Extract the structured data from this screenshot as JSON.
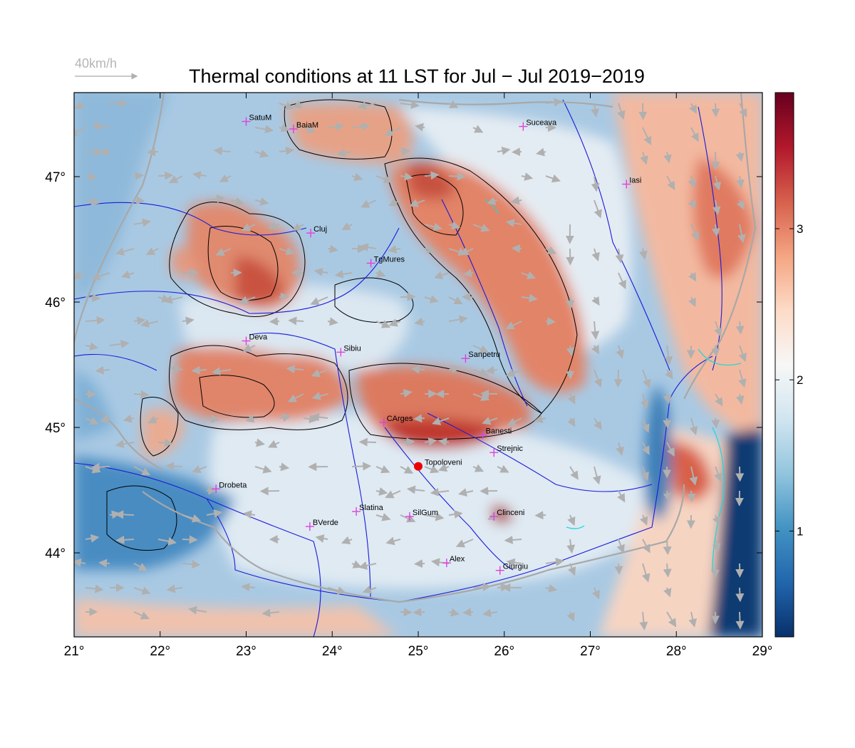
{
  "title": "Thermal conditions at 11 LST for Jul − Jul  2019−2019",
  "wind_legend": {
    "label": "40km/h"
  },
  "map": {
    "lon_range": [
      21,
      29
    ],
    "lat_range": [
      43.33,
      47.67
    ],
    "x_ticks": [
      {
        "value": 21,
        "label": "21°"
      },
      {
        "value": 22,
        "label": "22°"
      },
      {
        "value": 23,
        "label": "23°"
      },
      {
        "value": 24,
        "label": "24°"
      },
      {
        "value": 25,
        "label": "25°"
      },
      {
        "value": 26,
        "label": "26°"
      },
      {
        "value": 27,
        "label": "27°"
      },
      {
        "value": 28,
        "label": "28°"
      },
      {
        "value": 29,
        "label": "29°"
      }
    ],
    "y_ticks": [
      {
        "value": 44,
        "label": "44°"
      },
      {
        "value": 45,
        "label": "45°"
      },
      {
        "value": 46,
        "label": "46°"
      },
      {
        "value": 47,
        "label": "47°"
      }
    ],
    "cities": [
      {
        "name": "SatuM",
        "lon": 23.0,
        "lat": 47.44
      },
      {
        "name": "BaiaM",
        "lon": 23.55,
        "lat": 47.38
      },
      {
        "name": "Suceava",
        "lon": 26.22,
        "lat": 47.4
      },
      {
        "name": "Iasi",
        "lon": 27.42,
        "lat": 46.94
      },
      {
        "name": "Cluj",
        "lon": 23.75,
        "lat": 46.55
      },
      {
        "name": "TgMures",
        "lon": 24.45,
        "lat": 46.31
      },
      {
        "name": "Deva",
        "lon": 23.0,
        "lat": 45.69
      },
      {
        "name": "Sibiu",
        "lon": 24.1,
        "lat": 45.6
      },
      {
        "name": "Sanpetru",
        "lon": 25.55,
        "lat": 45.55
      },
      {
        "name": "CArges",
        "lon": 24.6,
        "lat": 45.04
      },
      {
        "name": "Banesti",
        "lon": 25.75,
        "lat": 44.94
      },
      {
        "name": "Strejnic",
        "lon": 25.88,
        "lat": 44.8
      },
      {
        "name": "Drobeta",
        "lon": 22.65,
        "lat": 44.51
      },
      {
        "name": "Slatina",
        "lon": 24.28,
        "lat": 44.33
      },
      {
        "name": "SilGum",
        "lon": 24.9,
        "lat": 44.29
      },
      {
        "name": "Clinceni",
        "lon": 25.88,
        "lat": 44.29
      },
      {
        "name": "BVerde",
        "lon": 23.74,
        "lat": 44.21
      },
      {
        "name": "Alex",
        "lon": 25.33,
        "lat": 43.92
      },
      {
        "name": "Giurgiu",
        "lon": 25.95,
        "lat": 43.86
      }
    ],
    "highlight_point": {
      "name": "Topoloveni",
      "lon": 25.0,
      "lat": 44.69,
      "color": "#ee0000"
    }
  },
  "colorbar": {
    "ticks": [
      {
        "value": 1,
        "label": "1"
      },
      {
        "value": 2,
        "label": "2"
      },
      {
        "value": 3,
        "label": "3"
      }
    ],
    "range": [
      0.3,
      3.9
    ],
    "colors": [
      "#08306b",
      "#2166ac",
      "#4393c3",
      "#92c5de",
      "#d1e5f0",
      "#f7f7f7",
      "#fddbc7",
      "#f4a582",
      "#d6604d",
      "#b2182b",
      "#67001f"
    ]
  },
  "colors": {
    "cross": "#e040e0",
    "river": "#1a1adb",
    "border": "#a8a8a8",
    "lake": "#20d8d8",
    "contour": "#000000",
    "wind": "#b0b0b0"
  }
}
